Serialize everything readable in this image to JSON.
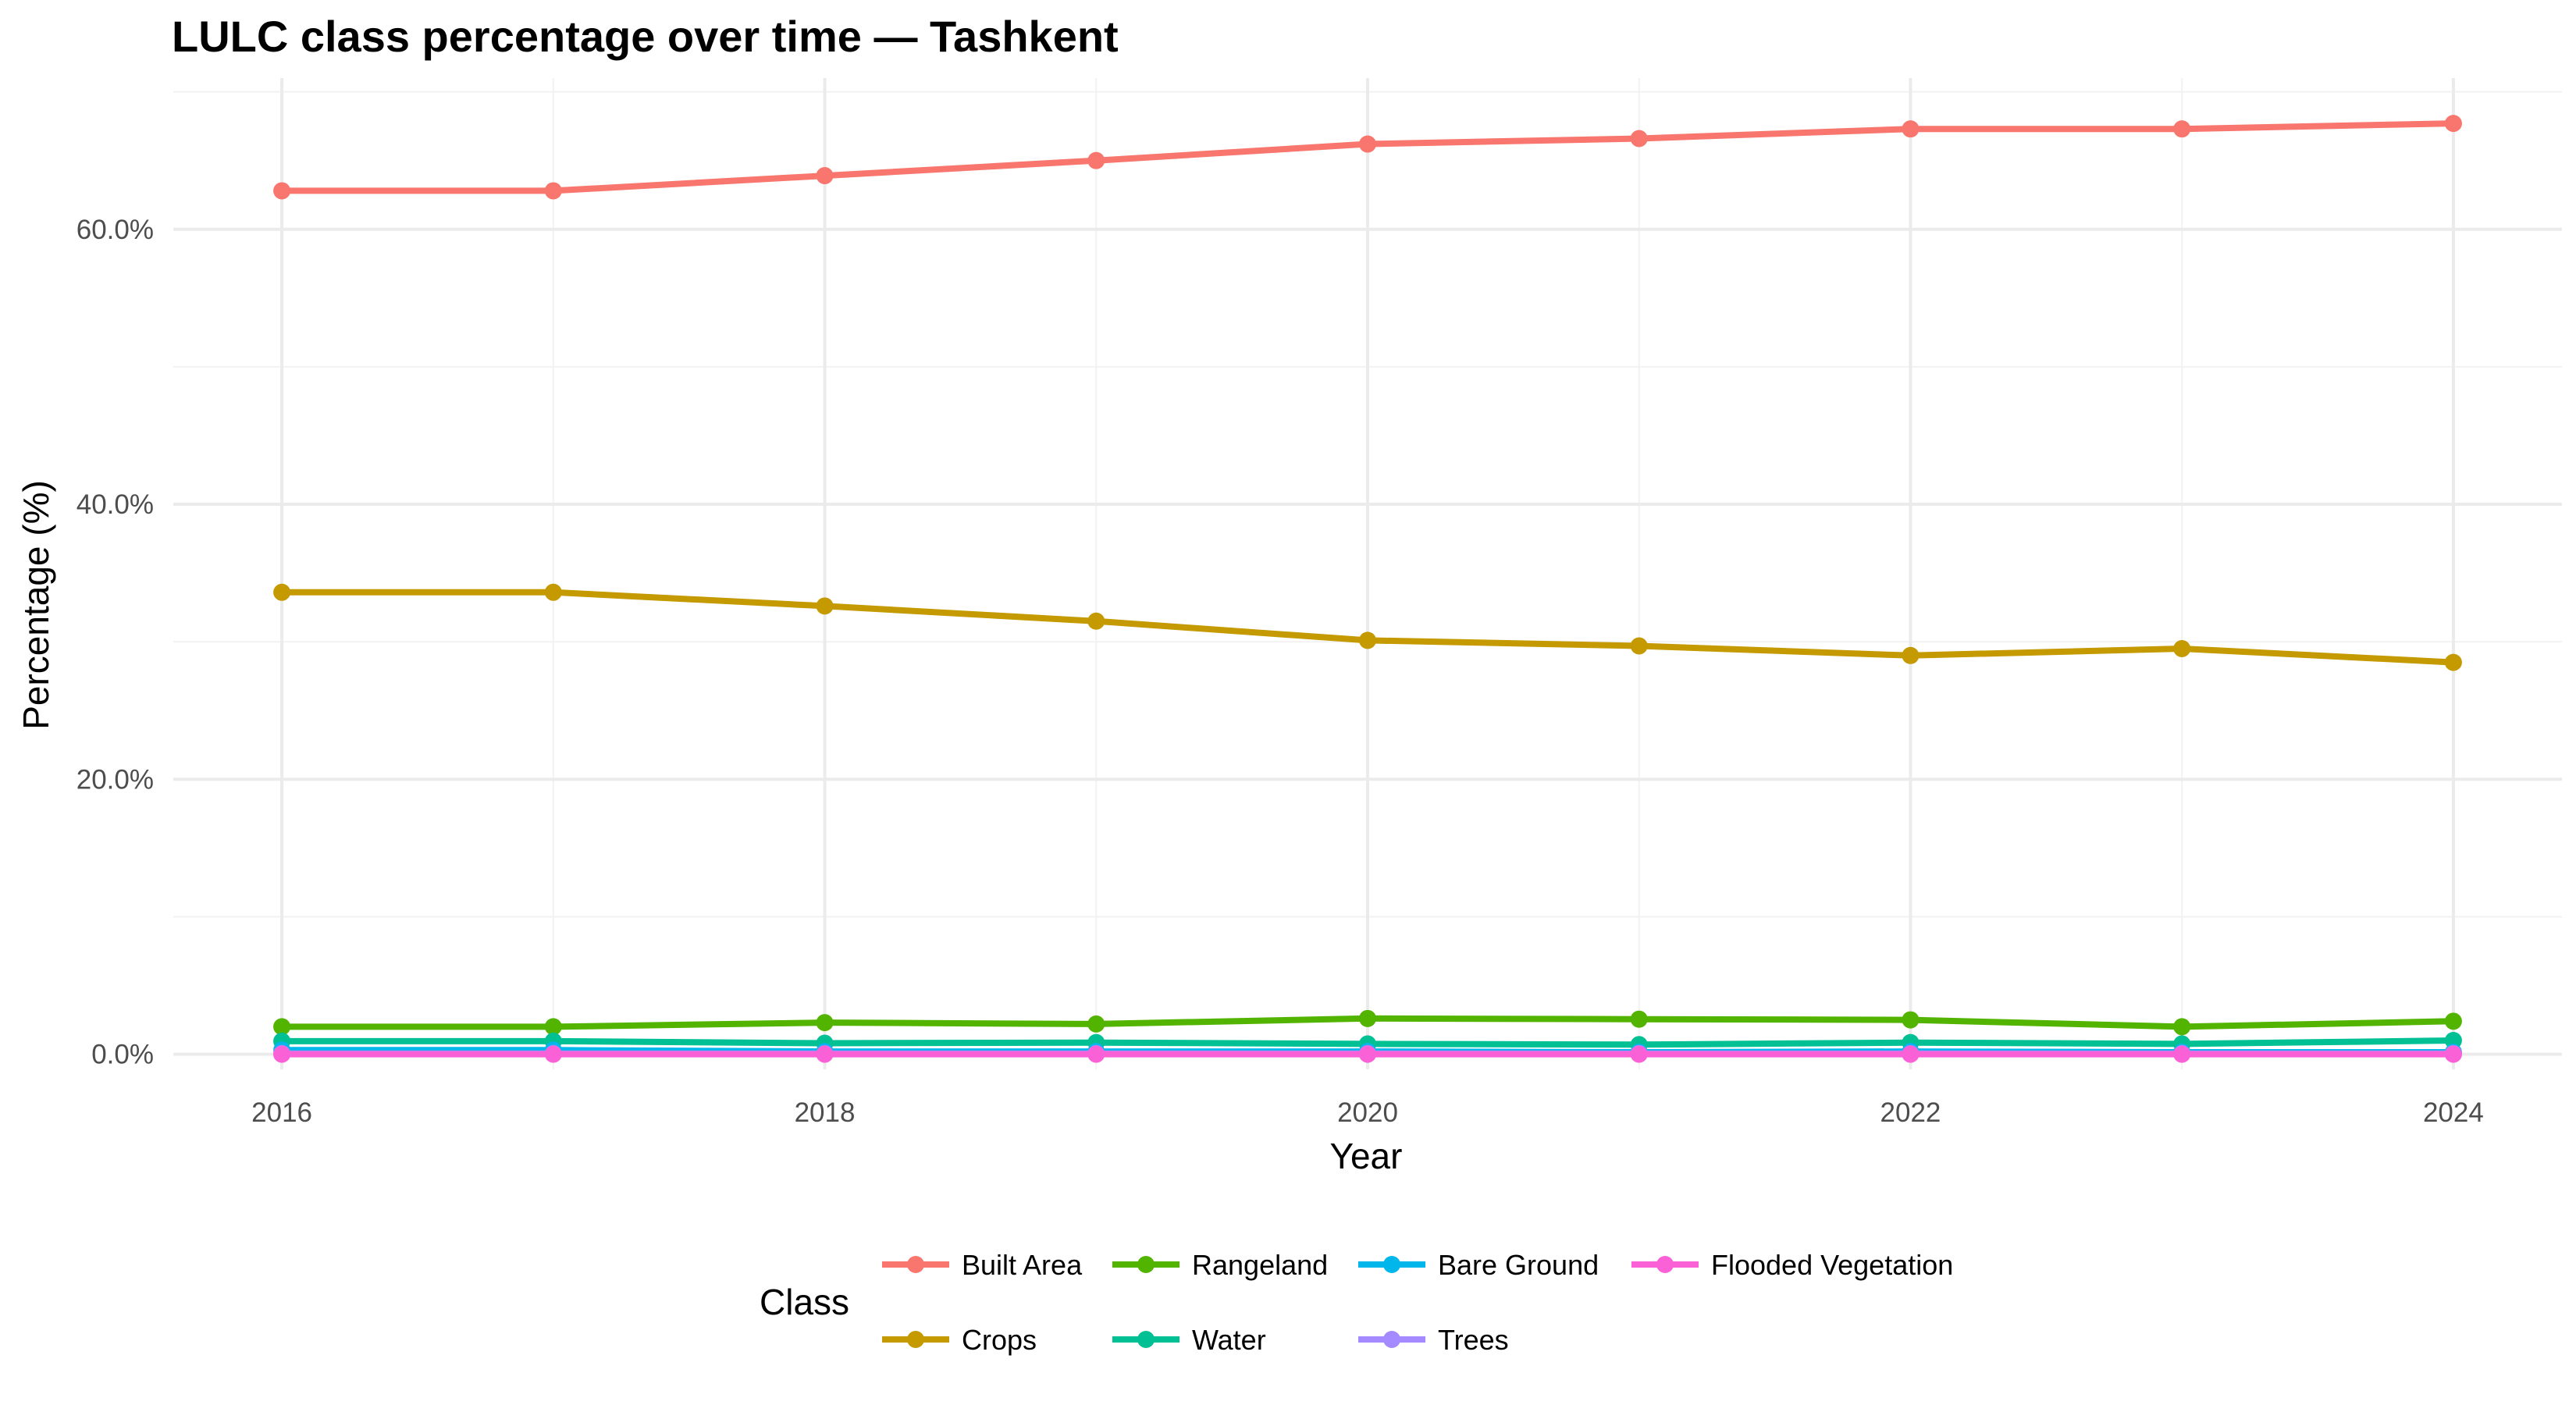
{
  "chart_data": {
    "type": "line",
    "title": "LULC class percentage over time — Tashkent",
    "xlabel": "Year",
    "ylabel": "Percentage (%)",
    "xlim": [
      2015.6,
      2024.4
    ],
    "ylim": [
      -1.1,
      71
    ],
    "x_ticks": [
      2016,
      2018,
      2020,
      2022,
      2024
    ],
    "x_tick_labels": [
      "2016",
      "2018",
      "2020",
      "2022",
      "2024"
    ],
    "y_ticks": [
      0,
      20,
      40,
      60
    ],
    "y_tick_labels": [
      "0.0%",
      "20.0%",
      "40.0%",
      "60.0%"
    ],
    "grid": true,
    "legend": {
      "title": "Class",
      "position": "bottom"
    },
    "x": [
      2016,
      2017,
      2018,
      2019,
      2020,
      2021,
      2022,
      2023,
      2024
    ],
    "series": [
      {
        "name": "Built Area",
        "color": "#F8766D",
        "values": [
          62.8,
          62.8,
          63.9,
          65.0,
          66.2,
          66.6,
          67.3,
          67.3,
          67.7
        ]
      },
      {
        "name": "Crops",
        "color": "#C49A00",
        "values": [
          33.6,
          33.6,
          32.6,
          31.5,
          30.1,
          29.7,
          29.0,
          29.5,
          28.5
        ]
      },
      {
        "name": "Rangeland",
        "color": "#53B400",
        "values": [
          2.0,
          2.0,
          2.3,
          2.2,
          2.6,
          2.55,
          2.5,
          2.0,
          2.4
        ]
      },
      {
        "name": "Water",
        "color": "#00C094",
        "values": [
          0.95,
          0.95,
          0.8,
          0.85,
          0.75,
          0.7,
          0.85,
          0.75,
          1.0
        ]
      },
      {
        "name": "Bare Ground",
        "color": "#00B6EB",
        "values": [
          0.3,
          0.3,
          0.2,
          0.2,
          0.2,
          0.15,
          0.2,
          0.15,
          0.15
        ]
      },
      {
        "name": "Trees",
        "color": "#A58AFF",
        "values": [
          0.05,
          0.05,
          0.05,
          0.05,
          0.05,
          0.05,
          0.05,
          0.05,
          0.05
        ]
      },
      {
        "name": "Flooded Vegetation",
        "color": "#FB61D7",
        "values": [
          0.0,
          0.0,
          0.0,
          0.0,
          0.0,
          0.0,
          0.0,
          0.0,
          0.0
        ]
      }
    ]
  }
}
